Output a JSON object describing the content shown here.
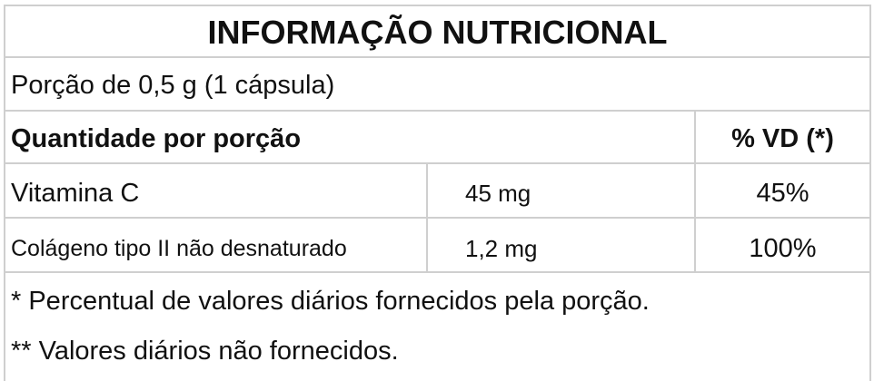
{
  "title": "INFORMAÇÃO NUTRICIONAL",
  "portion": "Porção de 0,5 g (1 cápsula)",
  "header": {
    "quantity": "Quantidade por porção",
    "dv": "% VD (*)"
  },
  "rows": [
    {
      "name": "Vitamina C",
      "amount": "45 mg",
      "dv": "45%"
    },
    {
      "name": "Colágeno tipo II não desnaturado",
      "amount": "1,2 mg",
      "dv": "100%"
    }
  ],
  "footnotes": [
    "* Percentual de valores diários fornecidos pela porção.",
    "** Valores diários não fornecidos."
  ],
  "colors": {
    "border": "#cfcfcf",
    "text": "#111111"
  }
}
